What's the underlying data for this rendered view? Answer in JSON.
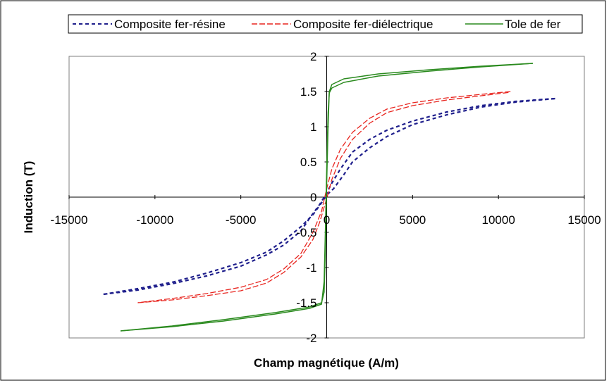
{
  "chart_data": {
    "type": "line",
    "title": "",
    "xlabel": "Champ magnétique (A/m)",
    "ylabel": "Induction (T)",
    "xlim": [
      -15000,
      15000
    ],
    "ylim": [
      -2,
      2
    ],
    "xticks": [
      -15000,
      -10000,
      -5000,
      0,
      5000,
      10000,
      15000
    ],
    "yticks": [
      -2,
      -1.5,
      -1,
      -0.5,
      0,
      0.5,
      1,
      1.5,
      2
    ],
    "xtick_labels": [
      "-15000",
      "-10000",
      "-5000",
      "0",
      "5000",
      "10000",
      "15000"
    ],
    "ytick_labels": [
      "-2",
      "-1.5",
      "-1",
      "-0.5",
      "0",
      "0.5",
      "1",
      "1.5",
      "2"
    ],
    "grid": false,
    "legend_position": "top",
    "series": [
      {
        "name": "Composite fer-résine",
        "color": "#1f1f8c",
        "dash": "dotted",
        "ascending": [
          [
            -13000,
            -1.38
          ],
          [
            -11000,
            -1.3
          ],
          [
            -9000,
            -1.21
          ],
          [
            -7000,
            -1.08
          ],
          [
            -5000,
            -0.93
          ],
          [
            -3500,
            -0.78
          ],
          [
            -2500,
            -0.62
          ],
          [
            -1500,
            -0.42
          ],
          [
            -800,
            -0.25
          ],
          [
            -300,
            -0.08
          ],
          [
            0,
            0.03
          ],
          [
            400,
            0.12
          ],
          [
            1000,
            0.32
          ],
          [
            1500,
            0.5
          ],
          [
            2500,
            0.7
          ],
          [
            3500,
            0.86
          ],
          [
            5000,
            1.03
          ],
          [
            7000,
            1.17
          ],
          [
            9000,
            1.28
          ],
          [
            11000,
            1.35
          ],
          [
            13300,
            1.4
          ]
        ],
        "descending": [
          [
            13300,
            1.4
          ],
          [
            11000,
            1.36
          ],
          [
            9000,
            1.3
          ],
          [
            7000,
            1.21
          ],
          [
            5000,
            1.08
          ],
          [
            3500,
            0.95
          ],
          [
            2500,
            0.82
          ],
          [
            1500,
            0.64
          ],
          [
            800,
            0.4
          ],
          [
            300,
            0.2
          ],
          [
            0,
            0.06
          ],
          [
            -400,
            -0.1
          ],
          [
            -1000,
            -0.3
          ],
          [
            -1500,
            -0.48
          ],
          [
            -2500,
            -0.68
          ],
          [
            -3500,
            -0.82
          ],
          [
            -5000,
            -0.98
          ],
          [
            -7000,
            -1.12
          ],
          [
            -9000,
            -1.23
          ],
          [
            -11000,
            -1.32
          ],
          [
            -13000,
            -1.38
          ]
        ]
      },
      {
        "name": "Composite fer-diélectrique",
        "color": "#e8251f",
        "dash": "dashed",
        "ascending": [
          [
            -11000,
            -1.5
          ],
          [
            -9000,
            -1.46
          ],
          [
            -7000,
            -1.4
          ],
          [
            -5000,
            -1.33
          ],
          [
            -3500,
            -1.22
          ],
          [
            -2500,
            -1.07
          ],
          [
            -1500,
            -0.85
          ],
          [
            -800,
            -0.6
          ],
          [
            -400,
            -0.35
          ],
          [
            0,
            -0.02
          ],
          [
            300,
            0.25
          ],
          [
            800,
            0.55
          ],
          [
            1500,
            0.82
          ],
          [
            2500,
            1.05
          ],
          [
            3500,
            1.2
          ],
          [
            5000,
            1.3
          ],
          [
            7000,
            1.38
          ],
          [
            9000,
            1.44
          ],
          [
            10700,
            1.49
          ]
        ],
        "descending": [
          [
            10700,
            1.5
          ],
          [
            9000,
            1.46
          ],
          [
            7000,
            1.41
          ],
          [
            5000,
            1.34
          ],
          [
            3500,
            1.25
          ],
          [
            2500,
            1.12
          ],
          [
            1500,
            0.92
          ],
          [
            800,
            0.68
          ],
          [
            300,
            0.4
          ],
          [
            0,
            0.12
          ],
          [
            -300,
            -0.2
          ],
          [
            -800,
            -0.5
          ],
          [
            -1500,
            -0.8
          ],
          [
            -2500,
            -1.02
          ],
          [
            -3500,
            -1.17
          ],
          [
            -5000,
            -1.28
          ],
          [
            -7000,
            -1.37
          ],
          [
            -9000,
            -1.44
          ],
          [
            -11000,
            -1.5
          ]
        ]
      },
      {
        "name": "Tole de fer",
        "color": "#2a8a1e",
        "dash": "solid",
        "ascending": [
          [
            -12000,
            -1.9
          ],
          [
            -9000,
            -1.84
          ],
          [
            -6000,
            -1.76
          ],
          [
            -3000,
            -1.66
          ],
          [
            -1000,
            -1.58
          ],
          [
            -300,
            -1.52
          ],
          [
            -150,
            -1.2
          ],
          [
            -80,
            -0.5
          ],
          [
            0,
            0.4
          ],
          [
            80,
            1.2
          ],
          [
            150,
            1.48
          ],
          [
            300,
            1.55
          ],
          [
            1000,
            1.63
          ],
          [
            3000,
            1.72
          ],
          [
            6000,
            1.79
          ],
          [
            9000,
            1.85
          ],
          [
            12000,
            1.9
          ]
        ],
        "descending": [
          [
            12000,
            1.9
          ],
          [
            9000,
            1.86
          ],
          [
            6000,
            1.81
          ],
          [
            3000,
            1.75
          ],
          [
            1000,
            1.68
          ],
          [
            300,
            1.6
          ],
          [
            150,
            1.5
          ],
          [
            80,
            1.0
          ],
          [
            0,
            0.2
          ],
          [
            -80,
            -0.8
          ],
          [
            -150,
            -1.35
          ],
          [
            -300,
            -1.5
          ],
          [
            -1000,
            -1.56
          ],
          [
            -3000,
            -1.64
          ],
          [
            -6000,
            -1.74
          ],
          [
            -9000,
            -1.83
          ],
          [
            -12000,
            -1.9
          ]
        ]
      }
    ]
  }
}
